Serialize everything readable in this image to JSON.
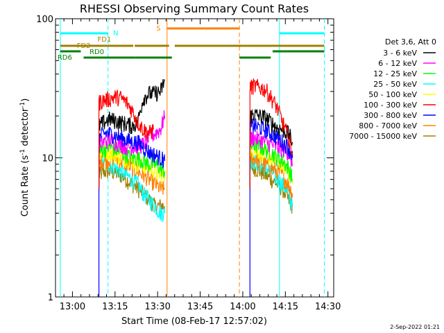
{
  "chart_data": {
    "type": "line",
    "title": "RHESSI Observing Summary Count Rates",
    "xlabel": "Start Time (08-Feb-17 12:57:02)",
    "ylabel_main": "Count Rate (s",
    "ylabel_sup1": "-1",
    "ylabel_mid": " detector",
    "ylabel_sup2": "-1",
    "ylabel_end": ")",
    "x_unit": "minutes after 12:57:02",
    "xlim": [
      -3,
      95
    ],
    "ylim": [
      1,
      100
    ],
    "yscale": "log",
    "x_ticks": [
      {
        "label": "13:00",
        "value": 2.97
      },
      {
        "label": "13:15",
        "value": 17.97
      },
      {
        "label": "13:30",
        "value": 32.97
      },
      {
        "label": "13:45",
        "value": 47.97
      },
      {
        "label": "14:00",
        "value": 62.97
      },
      {
        "label": "14:15",
        "value": 77.97
      },
      {
        "label": "14:30",
        "value": 92.97
      }
    ],
    "y_ticks": [
      {
        "label": "1",
        "value": 1
      },
      {
        "label": "10",
        "value": 10
      },
      {
        "label": "100",
        "value": 100
      }
    ],
    "legend": {
      "header": "Det 3,6, Att 0",
      "placement": "right",
      "entries": [
        {
          "label": "3 - 6 keV",
          "color": "#000000"
        },
        {
          "label": "6 - 12 keV",
          "color": "#ff00ff"
        },
        {
          "label": "12 - 25 keV",
          "color": "#00ff00"
        },
        {
          "label": "25 - 50 keV",
          "color": "#00ffff"
        },
        {
          "label": "50 - 100 keV",
          "color": "#ffff00"
        },
        {
          "label": "100 - 300 keV",
          "color": "#ff0000"
        },
        {
          "label": "300 - 800 keV",
          "color": "#0000ff"
        },
        {
          "label": "800 - 7000 keV",
          "color": "#ff8000"
        },
        {
          "label": "7000 - 15000 keV",
          "color": "#a08000"
        }
      ]
    },
    "series": [
      {
        "color": "#ff0000",
        "segments": [
          {
            "x": [
              12.3,
              14.0,
              16.0,
              18.0,
              20.0,
              22.0,
              24.0,
              26.0,
              28.0,
              30.0,
              31.5
            ],
            "y": [
              25,
              26,
              26.5,
              27.5,
              27,
              25,
              22,
              18,
              16,
              15,
              16
            ]
          },
          {
            "x": [
              65.5,
              67.0,
              69.0,
              71.0,
              73.0,
              75.0,
              77.0,
              79.0,
              80.5
            ],
            "y": [
              32,
              33,
              32,
              31,
              27,
              23,
              18,
              14,
              11
            ]
          }
        ]
      },
      {
        "color": "#000000",
        "segments": [
          {
            "x": [
              12.3,
              14.0,
              16.0,
              18.0,
              20.0,
              22.0,
              24.0,
              26.0,
              28.0,
              30.0,
              32.0,
              34.0,
              35.5
            ],
            "y": [
              17,
              18,
              19,
              18.5,
              18,
              17.5,
              17,
              18,
              27,
              29,
              29,
              30,
              36
            ]
          },
          {
            "x": [
              65.5,
              67.0,
              69.0,
              71.0,
              73.0,
              75.0,
              77.0,
              79.0,
              80.5
            ],
            "y": [
              20,
              20.5,
              20,
              19.5,
              18,
              16.5,
              16,
              15,
              13
            ]
          }
        ]
      },
      {
        "color": "#0000ff",
        "segments": [
          {
            "x": [
              12.3,
              14.0,
              16.0,
              18.0,
              20.0,
              22.0,
              24.0,
              26.0,
              28.0,
              30.0,
              32.0,
              34.0,
              35.5
            ],
            "y": [
              14,
              15,
              15,
              14.5,
              14,
              13.5,
              13,
              13,
              12,
              11,
              10.5,
              10,
              9.5
            ]
          },
          {
            "x": [
              65.5,
              67.0,
              69.0,
              71.0,
              73.0,
              75.0,
              77.0,
              79.0,
              80.5
            ],
            "y": [
              17,
              17,
              16.5,
              16,
              15,
              14,
              13,
              12,
              10
            ]
          }
        ]
      },
      {
        "color": "#ff00ff",
        "segments": [
          {
            "x": [
              12.3,
              14.0,
              16.0,
              18.0,
              20.0,
              22.0,
              24.0,
              26.0,
              28.0,
              30.0,
              32.0,
              34.0,
              35.5
            ],
            "y": [
              12.5,
              13,
              13.5,
              13,
              12.5,
              12,
              12,
              12,
              12.5,
              14,
              15,
              16,
              20
            ]
          },
          {
            "x": [
              65.5,
              67.0,
              69.0,
              71.0,
              73.0,
              75.0,
              77.0,
              79.0,
              80.5
            ],
            "y": [
              13.5,
              14,
              13.5,
              13,
              12.5,
              12,
              11.5,
              11,
              9
            ]
          }
        ]
      },
      {
        "color": "#00ff00",
        "segments": [
          {
            "x": [
              12.3,
              14.0,
              16.0,
              18.0,
              20.0,
              22.0,
              24.0,
              26.0,
              28.0,
              30.0,
              32.0,
              34.0,
              35.5
            ],
            "y": [
              11,
              11.5,
              12,
              11.5,
              11,
              10.5,
              10,
              10,
              9.5,
              9,
              9,
              8.5,
              8
            ]
          },
          {
            "x": [
              65.5,
              67.0,
              69.0,
              71.0,
              73.0,
              75.0,
              77.0,
              79.0,
              80.5
            ],
            "y": [
              12,
              12.5,
              12,
              11.5,
              11,
              10,
              9.5,
              8.5,
              7
            ]
          }
        ]
      },
      {
        "color": "#ffff00",
        "segments": [
          {
            "x": [
              12.3,
              14.0,
              16.0,
              18.0,
              20.0,
              22.0,
              24.0,
              26.0,
              28.0,
              30.0,
              32.0,
              34.0,
              35.5
            ],
            "y": [
              10.5,
              11,
              11,
              10.5,
              10,
              9.8,
              9.5,
              9,
              8.8,
              8.5,
              8,
              7.5,
              7.5
            ]
          },
          {
            "x": [
              65.5,
              67.0,
              69.0,
              71.0,
              73.0,
              75.0,
              77.0,
              79.0,
              80.5
            ],
            "y": [
              11.5,
              11.5,
              11,
              10.5,
              10,
              9.5,
              9,
              8,
              6.5
            ]
          }
        ]
      },
      {
        "color": "#ff8000",
        "segments": [
          {
            "x": [
              12.3,
              14.0,
              16.0,
              18.0,
              20.0,
              22.0,
              24.0,
              26.0,
              28.0,
              30.0,
              32.0,
              34.0,
              35.5
            ],
            "y": [
              9,
              9.5,
              9.8,
              10,
              9.5,
              9,
              8.5,
              8,
              7.5,
              7,
              6.5,
              6,
              6
            ]
          },
          {
            "x": [
              65.5,
              67.0,
              69.0,
              71.0,
              73.0,
              75.0,
              77.0,
              79.0,
              80.5
            ],
            "y": [
              10,
              10,
              9.5,
              9,
              8.5,
              8,
              7.5,
              6.5,
              5.5
            ]
          }
        ]
      },
      {
        "color": "#00ffff",
        "segments": [
          {
            "x": [
              12.3,
              14.0,
              16.0,
              18.0,
              20.0,
              22.0,
              24.0,
              26.0,
              28.0,
              30.0,
              32.0,
              34.0,
              35.5
            ],
            "y": [
              8.5,
              9,
              9,
              8.5,
              8,
              7.5,
              7,
              6.5,
              5.5,
              5,
              4.5,
              4,
              4
            ]
          },
          {
            "x": [
              65.5,
              67.0,
              69.0,
              71.0,
              73.0,
              75.0,
              77.0,
              79.0,
              80.5
            ],
            "y": [
              9.5,
              9.5,
              9,
              8.5,
              8,
              7,
              6.5,
              5.5,
              4.5
            ]
          }
        ]
      },
      {
        "color": "#a08000",
        "segments": [
          {
            "x": [
              12.3,
              14.0,
              16.0,
              18.0,
              20.0,
              22.0,
              24.0,
              26.0,
              28.0,
              30.0,
              32.0,
              34.0,
              35.5
            ],
            "y": [
              7.5,
              8,
              8,
              7.8,
              7.5,
              7,
              6.5,
              6,
              5.5,
              5,
              4.5,
              4.5,
              4.5
            ]
          },
          {
            "x": [
              65.5,
              67.0,
              69.0,
              71.0,
              73.0,
              75.0,
              77.0,
              79.0,
              80.5
            ],
            "y": [
              8.5,
              8.5,
              8,
              7.5,
              7,
              6.5,
              6,
              5,
              4.5
            ]
          }
        ]
      }
    ],
    "vertical_markers": [
      {
        "x": -1.3,
        "color": "#00ffff",
        "style": "solid"
      },
      {
        "x": 15.5,
        "color": "#00ffff",
        "style": "dashed"
      },
      {
        "x": 36.3,
        "color": "#ff8000",
        "style": "solid"
      },
      {
        "x": 61.8,
        "color": "#ff8000",
        "style": "dashed"
      },
      {
        "x": 75.9,
        "color": "#00ffff",
        "style": "solid"
      },
      {
        "x": 91.7,
        "color": "#00ffff",
        "style": "dashed"
      }
    ],
    "flags": [
      {
        "label": "N",
        "color": "#00ffff",
        "label_x": 17.3,
        "bars": [
          [
            -1.3,
            15.5
          ],
          [
            75.9,
            91.7
          ]
        ]
      },
      {
        "label": "S",
        "color": "#ff8000",
        "label_x": 32.5,
        "bars": [
          [
            36.3,
            61.8
          ]
        ]
      },
      {
        "label": "FD1",
        "color": "#a08000",
        "label_x": 11.8,
        "bars": [
          [
            24.9,
            37.0
          ],
          [
            39.0,
            91.7
          ]
        ]
      },
      {
        "label": "FD2",
        "color": "#a08000",
        "label_x": 4.5,
        "bars": [
          [
            -1.3,
            24.4
          ]
        ]
      },
      {
        "label": "RD0",
        "color": "#008000",
        "label_x": 9.0,
        "bars": [
          [
            -1.3,
            5.9
          ],
          [
            73.5,
            91.7
          ]
        ]
      },
      {
        "label": "RD6",
        "color": "#008000",
        "label_x": -2.3,
        "bars": [
          [
            6.9,
            24.9
          ],
          [
            24.9,
            38.0
          ],
          [
            61.8,
            72.8
          ]
        ]
      }
    ]
  },
  "footer": {
    "date": "2-Sep-2022 01:21"
  }
}
